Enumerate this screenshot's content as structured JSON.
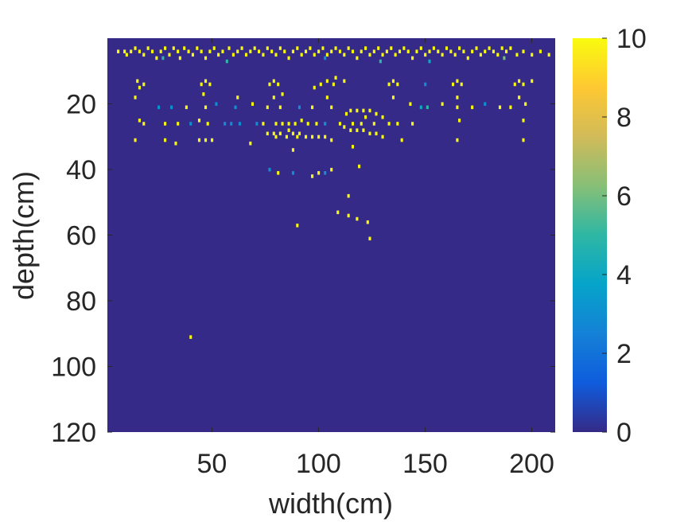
{
  "chart_data": {
    "type": "heatmap",
    "title": "",
    "xlabel": "width(cm)",
    "ylabel": "depth(cm)",
    "xlim": [
      1,
      211
    ],
    "ylim": [
      0,
      120
    ],
    "y_reversed": true,
    "x_ticks": [
      50,
      100,
      150,
      200
    ],
    "x_tick_labels": [
      "50",
      "100",
      "150",
      "200"
    ],
    "y_ticks": [
      20,
      40,
      60,
      80,
      100,
      120
    ],
    "y_tick_labels": [
      "20",
      "40",
      "60",
      "80",
      "100",
      "120"
    ],
    "colormap": "parula",
    "background_value": 0,
    "colorbar": {
      "range": [
        0,
        10
      ],
      "ticks": [
        0,
        2,
        4,
        6,
        8,
        10
      ],
      "tick_labels": [
        "0",
        "2",
        "4",
        "6",
        "8",
        "10"
      ],
      "colors": [
        "#352a87",
        "#0f5cdd",
        "#1481d6",
        "#06a4ca",
        "#2eb7a4",
        "#87bf77",
        "#d1bb59",
        "#fec832",
        "#f9fb0e"
      ]
    },
    "cells": [
      {
        "x": 6,
        "y": 4,
        "v": 10
      },
      {
        "x": 9,
        "y": 4,
        "v": 10
      },
      {
        "x": 10,
        "y": 5,
        "v": 10
      },
      {
        "x": 12,
        "y": 4,
        "v": 10
      },
      {
        "x": 14,
        "y": 3,
        "v": 10
      },
      {
        "x": 16,
        "y": 4,
        "v": 10
      },
      {
        "x": 18,
        "y": 5,
        "v": 10
      },
      {
        "x": 20,
        "y": 3,
        "v": 10
      },
      {
        "x": 22,
        "y": 4,
        "v": 10
      },
      {
        "x": 24,
        "y": 6,
        "v": 10
      },
      {
        "x": 26,
        "y": 4,
        "v": 10
      },
      {
        "x": 28,
        "y": 3,
        "v": 10
      },
      {
        "x": 30,
        "y": 5,
        "v": 10
      },
      {
        "x": 32,
        "y": 3,
        "v": 10
      },
      {
        "x": 34,
        "y": 4,
        "v": 10
      },
      {
        "x": 35,
        "y": 6,
        "v": 10
      },
      {
        "x": 37,
        "y": 3,
        "v": 10
      },
      {
        "x": 39,
        "y": 4,
        "v": 10
      },
      {
        "x": 41,
        "y": 5,
        "v": 10
      },
      {
        "x": 43,
        "y": 3,
        "v": 10
      },
      {
        "x": 45,
        "y": 4,
        "v": 10
      },
      {
        "x": 47,
        "y": 6,
        "v": 10
      },
      {
        "x": 49,
        "y": 4,
        "v": 10
      },
      {
        "x": 51,
        "y": 3,
        "v": 10
      },
      {
        "x": 53,
        "y": 5,
        "v": 10
      },
      {
        "x": 55,
        "y": 4,
        "v": 10
      },
      {
        "x": 58,
        "y": 3,
        "v": 10
      },
      {
        "x": 60,
        "y": 5,
        "v": 10
      },
      {
        "x": 62,
        "y": 4,
        "v": 10
      },
      {
        "x": 64,
        "y": 3,
        "v": 10
      },
      {
        "x": 66,
        "y": 5,
        "v": 10
      },
      {
        "x": 68,
        "y": 4,
        "v": 10
      },
      {
        "x": 70,
        "y": 3,
        "v": 10
      },
      {
        "x": 72,
        "y": 4,
        "v": 10
      },
      {
        "x": 74,
        "y": 5,
        "v": 10
      },
      {
        "x": 76,
        "y": 3,
        "v": 10
      },
      {
        "x": 78,
        "y": 4,
        "v": 10
      },
      {
        "x": 80,
        "y": 5,
        "v": 10
      },
      {
        "x": 82,
        "y": 3,
        "v": 10
      },
      {
        "x": 84,
        "y": 4,
        "v": 10
      },
      {
        "x": 86,
        "y": 6,
        "v": 10
      },
      {
        "x": 88,
        "y": 4,
        "v": 10
      },
      {
        "x": 90,
        "y": 3,
        "v": 10
      },
      {
        "x": 92,
        "y": 5,
        "v": 10
      },
      {
        "x": 94,
        "y": 4,
        "v": 10
      },
      {
        "x": 96,
        "y": 3,
        "v": 10
      },
      {
        "x": 98,
        "y": 5,
        "v": 10
      },
      {
        "x": 100,
        "y": 4,
        "v": 10
      },
      {
        "x": 102,
        "y": 3,
        "v": 10
      },
      {
        "x": 104,
        "y": 5,
        "v": 10
      },
      {
        "x": 106,
        "y": 4,
        "v": 10
      },
      {
        "x": 108,
        "y": 3,
        "v": 10
      },
      {
        "x": 110,
        "y": 4,
        "v": 10
      },
      {
        "x": 112,
        "y": 5,
        "v": 10
      },
      {
        "x": 114,
        "y": 3,
        "v": 10
      },
      {
        "x": 116,
        "y": 4,
        "v": 10
      },
      {
        "x": 118,
        "y": 6,
        "v": 10
      },
      {
        "x": 120,
        "y": 4,
        "v": 10
      },
      {
        "x": 122,
        "y": 3,
        "v": 10
      },
      {
        "x": 124,
        "y": 5,
        "v": 10
      },
      {
        "x": 126,
        "y": 4,
        "v": 10
      },
      {
        "x": 128,
        "y": 3,
        "v": 10
      },
      {
        "x": 130,
        "y": 5,
        "v": 10
      },
      {
        "x": 132,
        "y": 4,
        "v": 10
      },
      {
        "x": 134,
        "y": 3,
        "v": 10
      },
      {
        "x": 136,
        "y": 5,
        "v": 10
      },
      {
        "x": 138,
        "y": 4,
        "v": 10
      },
      {
        "x": 140,
        "y": 3,
        "v": 10
      },
      {
        "x": 142,
        "y": 4,
        "v": 10
      },
      {
        "x": 144,
        "y": 6,
        "v": 10
      },
      {
        "x": 146,
        "y": 4,
        "v": 10
      },
      {
        "x": 148,
        "y": 3,
        "v": 10
      },
      {
        "x": 150,
        "y": 5,
        "v": 10
      },
      {
        "x": 152,
        "y": 4,
        "v": 10
      },
      {
        "x": 154,
        "y": 3,
        "v": 10
      },
      {
        "x": 156,
        "y": 4,
        "v": 10
      },
      {
        "x": 158,
        "y": 5,
        "v": 10
      },
      {
        "x": 160,
        "y": 3,
        "v": 10
      },
      {
        "x": 162,
        "y": 4,
        "v": 10
      },
      {
        "x": 164,
        "y": 5,
        "v": 10
      },
      {
        "x": 166,
        "y": 3,
        "v": 10
      },
      {
        "x": 168,
        "y": 4,
        "v": 10
      },
      {
        "x": 170,
        "y": 6,
        "v": 10
      },
      {
        "x": 172,
        "y": 4,
        "v": 10
      },
      {
        "x": 174,
        "y": 3,
        "v": 10
      },
      {
        "x": 176,
        "y": 5,
        "v": 10
      },
      {
        "x": 178,
        "y": 4,
        "v": 10
      },
      {
        "x": 180,
        "y": 3,
        "v": 10
      },
      {
        "x": 182,
        "y": 4,
        "v": 10
      },
      {
        "x": 184,
        "y": 5,
        "v": 10
      },
      {
        "x": 186,
        "y": 3,
        "v": 10
      },
      {
        "x": 188,
        "y": 4,
        "v": 10
      },
      {
        "x": 190,
        "y": 3,
        "v": 10
      },
      {
        "x": 193,
        "y": 5,
        "v": 10
      },
      {
        "x": 196,
        "y": 4,
        "v": 10
      },
      {
        "x": 200,
        "y": 5,
        "v": 10
      },
      {
        "x": 204,
        "y": 4,
        "v": 10
      },
      {
        "x": 208,
        "y": 5,
        "v": 10
      },
      {
        "x": 27,
        "y": 6,
        "v": 5
      },
      {
        "x": 57,
        "y": 7,
        "v": 5
      },
      {
        "x": 103,
        "y": 6,
        "v": 3
      },
      {
        "x": 129,
        "y": 7,
        "v": 5
      },
      {
        "x": 152,
        "y": 7,
        "v": 4
      },
      {
        "x": 187,
        "y": 6,
        "v": 6
      },
      {
        "x": 15,
        "y": 13,
        "v": 10
      },
      {
        "x": 18,
        "y": 14,
        "v": 10
      },
      {
        "x": 16,
        "y": 15,
        "v": 10
      },
      {
        "x": 14,
        "y": 18,
        "v": 10
      },
      {
        "x": 47,
        "y": 13,
        "v": 10
      },
      {
        "x": 45,
        "y": 14,
        "v": 10
      },
      {
        "x": 49,
        "y": 14,
        "v": 10
      },
      {
        "x": 46,
        "y": 17,
        "v": 10
      },
      {
        "x": 79,
        "y": 13,
        "v": 10
      },
      {
        "x": 77,
        "y": 14,
        "v": 10
      },
      {
        "x": 81,
        "y": 14,
        "v": 10
      },
      {
        "x": 79,
        "y": 18,
        "v": 10
      },
      {
        "x": 83,
        "y": 17,
        "v": 10
      },
      {
        "x": 104,
        "y": 13,
        "v": 10
      },
      {
        "x": 101,
        "y": 14,
        "v": 10
      },
      {
        "x": 107,
        "y": 14,
        "v": 10
      },
      {
        "x": 104,
        "y": 18,
        "v": 10
      },
      {
        "x": 98,
        "y": 15,
        "v": 10
      },
      {
        "x": 108,
        "y": 12,
        "v": 10
      },
      {
        "x": 112,
        "y": 13,
        "v": 10
      },
      {
        "x": 135,
        "y": 13,
        "v": 10
      },
      {
        "x": 133,
        "y": 14,
        "v": 10
      },
      {
        "x": 137,
        "y": 14,
        "v": 10
      },
      {
        "x": 135,
        "y": 18,
        "v": 10
      },
      {
        "x": 165,
        "y": 13,
        "v": 10
      },
      {
        "x": 163,
        "y": 14,
        "v": 10
      },
      {
        "x": 167,
        "y": 14,
        "v": 10
      },
      {
        "x": 165,
        "y": 18,
        "v": 10
      },
      {
        "x": 194,
        "y": 13,
        "v": 10
      },
      {
        "x": 192,
        "y": 14,
        "v": 10
      },
      {
        "x": 196,
        "y": 14,
        "v": 10
      },
      {
        "x": 194,
        "y": 18,
        "v": 10
      },
      {
        "x": 200,
        "y": 13,
        "v": 10
      },
      {
        "x": 150,
        "y": 14,
        "v": 3
      },
      {
        "x": 62,
        "y": 18,
        "v": 10
      },
      {
        "x": 25,
        "y": 21,
        "v": 3
      },
      {
        "x": 31,
        "y": 21,
        "v": 3
      },
      {
        "x": 38,
        "y": 21,
        "v": 10
      },
      {
        "x": 47,
        "y": 21,
        "v": 10
      },
      {
        "x": 52,
        "y": 20,
        "v": 3
      },
      {
        "x": 61,
        "y": 21,
        "v": 3
      },
      {
        "x": 69,
        "y": 20,
        "v": 10
      },
      {
        "x": 76,
        "y": 21,
        "v": 10
      },
      {
        "x": 82,
        "y": 21,
        "v": 10
      },
      {
        "x": 91,
        "y": 21,
        "v": 3
      },
      {
        "x": 97,
        "y": 21,
        "v": 10
      },
      {
        "x": 106,
        "y": 21,
        "v": 10
      },
      {
        "x": 143,
        "y": 20,
        "v": 10
      },
      {
        "x": 148,
        "y": 21,
        "v": 4
      },
      {
        "x": 151,
        "y": 21,
        "v": 5
      },
      {
        "x": 158,
        "y": 20,
        "v": 10
      },
      {
        "x": 165,
        "y": 21,
        "v": 10
      },
      {
        "x": 172,
        "y": 21,
        "v": 10
      },
      {
        "x": 178,
        "y": 20,
        "v": 3
      },
      {
        "x": 185,
        "y": 21,
        "v": 10
      },
      {
        "x": 190,
        "y": 21,
        "v": 10
      },
      {
        "x": 197,
        "y": 20,
        "v": 10
      },
      {
        "x": 115,
        "y": 22,
        "v": 10
      },
      {
        "x": 118,
        "y": 22,
        "v": 10
      },
      {
        "x": 121,
        "y": 22,
        "v": 10
      },
      {
        "x": 124,
        "y": 22,
        "v": 10
      },
      {
        "x": 127,
        "y": 23,
        "v": 10
      },
      {
        "x": 113,
        "y": 23,
        "v": 10
      },
      {
        "x": 122,
        "y": 24,
        "v": 10
      },
      {
        "x": 130,
        "y": 24,
        "v": 10
      },
      {
        "x": 16,
        "y": 25,
        "v": 10
      },
      {
        "x": 18,
        "y": 26,
        "v": 10
      },
      {
        "x": 28,
        "y": 26,
        "v": 10
      },
      {
        "x": 34,
        "y": 26,
        "v": 10
      },
      {
        "x": 40,
        "y": 26,
        "v": 3
      },
      {
        "x": 44,
        "y": 25,
        "v": 10
      },
      {
        "x": 48,
        "y": 26,
        "v": 10
      },
      {
        "x": 56,
        "y": 26,
        "v": 3
      },
      {
        "x": 59,
        "y": 26,
        "v": 3
      },
      {
        "x": 63,
        "y": 26,
        "v": 3
      },
      {
        "x": 71,
        "y": 26,
        "v": 3
      },
      {
        "x": 74,
        "y": 26,
        "v": 10
      },
      {
        "x": 80,
        "y": 26,
        "v": 10
      },
      {
        "x": 83,
        "y": 26,
        "v": 10
      },
      {
        "x": 86,
        "y": 26,
        "v": 10
      },
      {
        "x": 89,
        "y": 26,
        "v": 10
      },
      {
        "x": 92,
        "y": 25,
        "v": 10
      },
      {
        "x": 95,
        "y": 26,
        "v": 10
      },
      {
        "x": 99,
        "y": 26,
        "v": 10
      },
      {
        "x": 103,
        "y": 26,
        "v": 3
      },
      {
        "x": 110,
        "y": 26,
        "v": 10
      },
      {
        "x": 116,
        "y": 26,
        "v": 10
      },
      {
        "x": 120,
        "y": 26,
        "v": 10
      },
      {
        "x": 126,
        "y": 26,
        "v": 10
      },
      {
        "x": 133,
        "y": 26,
        "v": 10
      },
      {
        "x": 137,
        "y": 26,
        "v": 10
      },
      {
        "x": 144,
        "y": 26,
        "v": 10
      },
      {
        "x": 166,
        "y": 25,
        "v": 10
      },
      {
        "x": 196,
        "y": 25,
        "v": 10
      },
      {
        "x": 86,
        "y": 28,
        "v": 10
      },
      {
        "x": 112,
        "y": 27,
        "v": 10
      },
      {
        "x": 115,
        "y": 28,
        "v": 10
      },
      {
        "x": 118,
        "y": 28,
        "v": 10
      },
      {
        "x": 121,
        "y": 28,
        "v": 10
      },
      {
        "x": 124,
        "y": 29,
        "v": 10
      },
      {
        "x": 127,
        "y": 29,
        "v": 10
      },
      {
        "x": 130,
        "y": 30,
        "v": 10
      },
      {
        "x": 76,
        "y": 29,
        "v": 10
      },
      {
        "x": 79,
        "y": 29,
        "v": 10
      },
      {
        "x": 82,
        "y": 29,
        "v": 10
      },
      {
        "x": 85,
        "y": 30,
        "v": 10
      },
      {
        "x": 88,
        "y": 29,
        "v": 10
      },
      {
        "x": 91,
        "y": 29,
        "v": 10
      },
      {
        "x": 94,
        "y": 30,
        "v": 10
      },
      {
        "x": 97,
        "y": 30,
        "v": 10
      },
      {
        "x": 100,
        "y": 30,
        "v": 10
      },
      {
        "x": 103,
        "y": 30,
        "v": 10
      },
      {
        "x": 106,
        "y": 31,
        "v": 10
      },
      {
        "x": 80,
        "y": 30,
        "v": 10
      },
      {
        "x": 90,
        "y": 30,
        "v": 10
      },
      {
        "x": 14,
        "y": 31,
        "v": 10
      },
      {
        "x": 28,
        "y": 31,
        "v": 10
      },
      {
        "x": 33,
        "y": 32,
        "v": 10
      },
      {
        "x": 44,
        "y": 31,
        "v": 10
      },
      {
        "x": 47,
        "y": 31,
        "v": 10
      },
      {
        "x": 50,
        "y": 31,
        "v": 10
      },
      {
        "x": 68,
        "y": 32,
        "v": 10
      },
      {
        "x": 139,
        "y": 31,
        "v": 10
      },
      {
        "x": 165,
        "y": 31,
        "v": 10
      },
      {
        "x": 196,
        "y": 31,
        "v": 10
      },
      {
        "x": 88,
        "y": 34,
        "v": 10
      },
      {
        "x": 116,
        "y": 33,
        "v": 10
      },
      {
        "x": 119,
        "y": 39,
        "v": 10
      },
      {
        "x": 77,
        "y": 40,
        "v": 3
      },
      {
        "x": 81,
        "y": 41,
        "v": 10
      },
      {
        "x": 88,
        "y": 41,
        "v": 3
      },
      {
        "x": 97,
        "y": 42,
        "v": 10
      },
      {
        "x": 100,
        "y": 41,
        "v": 10
      },
      {
        "x": 103,
        "y": 41,
        "v": 3
      },
      {
        "x": 106,
        "y": 40,
        "v": 10
      },
      {
        "x": 114,
        "y": 48,
        "v": 10
      },
      {
        "x": 109,
        "y": 53,
        "v": 10
      },
      {
        "x": 114,
        "y": 54,
        "v": 10
      },
      {
        "x": 118,
        "y": 55,
        "v": 10
      },
      {
        "x": 123,
        "y": 56,
        "v": 10
      },
      {
        "x": 90,
        "y": 57,
        "v": 10
      },
      {
        "x": 124,
        "y": 61,
        "v": 10
      },
      {
        "x": 40,
        "y": 91,
        "v": 10
      }
    ]
  }
}
